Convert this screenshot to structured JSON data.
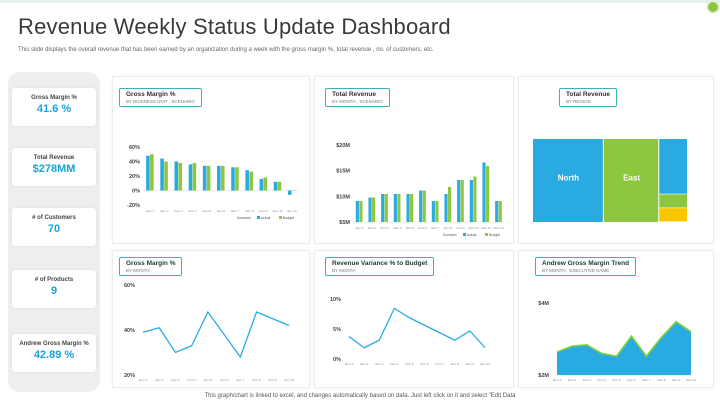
{
  "header": {
    "title": "Revenue Weekly Status Update Dashboard",
    "subtitle": "This slide displays the overall revenue that has been earned by an organization during a week with the gross margin %, total revenue , no. of customers, etc."
  },
  "kpis": [
    {
      "label": "Gross Margin %",
      "value": "41.6 %"
    },
    {
      "label": "Total Revenue",
      "value": "$278MM"
    },
    {
      "label": "# of Customers",
      "value": "70"
    },
    {
      "label": "# of Products",
      "value": "9"
    },
    {
      "label": "Andrew Gross Margin %",
      "value": "42.89 %"
    }
  ],
  "footer": {
    "note": "This graph/chart is linked to excel, and changes automatically based on data. Just left click on it and select \"Edit Data"
  },
  "colors": {
    "actual": "#29abe2",
    "budget": "#8dc63f",
    "accent": "#1aa3d9"
  },
  "panels": {
    "p1": {
      "title": "Gross Margin %",
      "sub": "BY BUSINESS  UNIT , SCENARIO"
    },
    "p2": {
      "title": "Total Revenue",
      "sub": "BY MONTH , SCENARIO"
    },
    "p3": {
      "title": "Total Revenue",
      "sub": "BY REGION"
    },
    "p4": {
      "title": "Gross Margin %",
      "sub": "BY MONTH"
    },
    "p5": {
      "title": "Revenue Variance % to Budget",
      "sub": "BY MONTH"
    },
    "p6": {
      "title": "Andrew Gross Margin Trend",
      "sub": "BY MONTH , EXECUTIVE  NAME"
    }
  },
  "chart_data": [
    {
      "id": "gm-bu",
      "type": "bar",
      "title": "Gross Margin %",
      "subtitle": "BY BUSINESS  UNIT , SCENARIO",
      "ylim": [
        -20,
        60
      ],
      "yticks": [
        "60%",
        "40%",
        "20%",
        "0%",
        "-20%"
      ],
      "categories": [
        "Item 1",
        "Item 2",
        "Item 3",
        "Item 4",
        "Item 5",
        "Item 6",
        "Item 7",
        "Item 8",
        "Item 9",
        "Item 10",
        "Item 11"
      ],
      "series": [
        {
          "name": "actual",
          "values": [
            48,
            44,
            40,
            36,
            34,
            34,
            32,
            28,
            16,
            12,
            -6
          ]
        },
        {
          "name": "Budget",
          "values": [
            50,
            40,
            38,
            38,
            34,
            34,
            32,
            26,
            18,
            12,
            0
          ]
        }
      ],
      "legend_title": "Scenario",
      "legend": "bottom-right"
    },
    {
      "id": "rev-month",
      "type": "bar",
      "title": "Total Revenue",
      "subtitle": "BY MONTH , SCENARIO",
      "ylim": [
        0,
        22
      ],
      "yticks": [
        "$20M",
        "$15M",
        "$10M",
        "$5M"
      ],
      "categories": [
        "Item 1",
        "Item 2",
        "Item 3",
        "Item 4",
        "Item 5",
        "Item 6",
        "Item 7",
        "Item 8",
        "Item 9",
        "Item 10",
        "Item 11",
        "Item 12"
      ],
      "series": [
        {
          "name": "actual",
          "values": [
            6,
            7,
            8,
            8,
            8,
            9,
            6,
            8,
            12,
            12,
            17,
            6
          ]
        },
        {
          "name": "Budget",
          "values": [
            6,
            7,
            8,
            8,
            8,
            9,
            6,
            10,
            12,
            13,
            16,
            6
          ]
        }
      ],
      "legend_title": "Scenario",
      "legend": "bottom-right"
    },
    {
      "id": "rev-region",
      "type": "treemap",
      "title": "Total Revenue",
      "subtitle": "BY REGION",
      "regions": [
        {
          "name": "North",
          "value": 46,
          "color": "#29abe2"
        },
        {
          "name": "East",
          "value": 36,
          "color": "#8dc63f"
        },
        {
          "name": "",
          "value": 12,
          "color": "#29abe2"
        },
        {
          "name": "",
          "value": 3,
          "color": "#8dc63f"
        },
        {
          "name": "",
          "value": 3,
          "color": "#f7c600"
        }
      ]
    },
    {
      "id": "gm-month",
      "type": "line",
      "title": "Gross Margin %",
      "subtitle": "BY MONTH",
      "ylim": [
        20,
        60
      ],
      "yticks": [
        "60%",
        "40%",
        "20%"
      ],
      "categories": [
        "Item 1",
        "Item 2",
        "Item 3",
        "Item 4",
        "Item 5",
        "Item 6",
        "Item 7",
        "Item 8",
        "Item 9",
        "Item 10"
      ],
      "values": [
        39,
        41,
        30,
        33,
        48,
        38,
        28,
        48,
        45,
        42
      ]
    },
    {
      "id": "rev-var",
      "type": "line",
      "title": "Revenue Variance % to Budget",
      "subtitle": "BY MONTH",
      "ylim": [
        -4,
        12
      ],
      "yticks": [
        "10%",
        "5%",
        "0%"
      ],
      "categories": [
        "Item 1",
        "Item 2",
        "Item 3",
        "Item 4",
        "Item 5",
        "Item 6",
        "Item 7",
        "Item 8",
        "Item 9",
        "Item 10"
      ],
      "values": [
        2,
        -1,
        1,
        9.5,
        7,
        5,
        3,
        1,
        3.5,
        -1
      ]
    },
    {
      "id": "andrew-trend",
      "type": "area",
      "title": "Andrew Gross Margin Trend",
      "subtitle": "BY MONTH , EXECUTIVE  NAME",
      "ylim": [
        0,
        5
      ],
      "yticks": [
        "$4M",
        "$2M"
      ],
      "categories": [
        "Item 1",
        "Item 2",
        "Item 3",
        "Item 4",
        "Item 5",
        "Item 6",
        "Item 7",
        "Item 8",
        "Item 9",
        "Item 10"
      ],
      "values": [
        1.6,
        2.0,
        2.1,
        1.5,
        1.3,
        2.7,
        1.3,
        2.6,
        3.7,
        3.0
      ]
    }
  ]
}
